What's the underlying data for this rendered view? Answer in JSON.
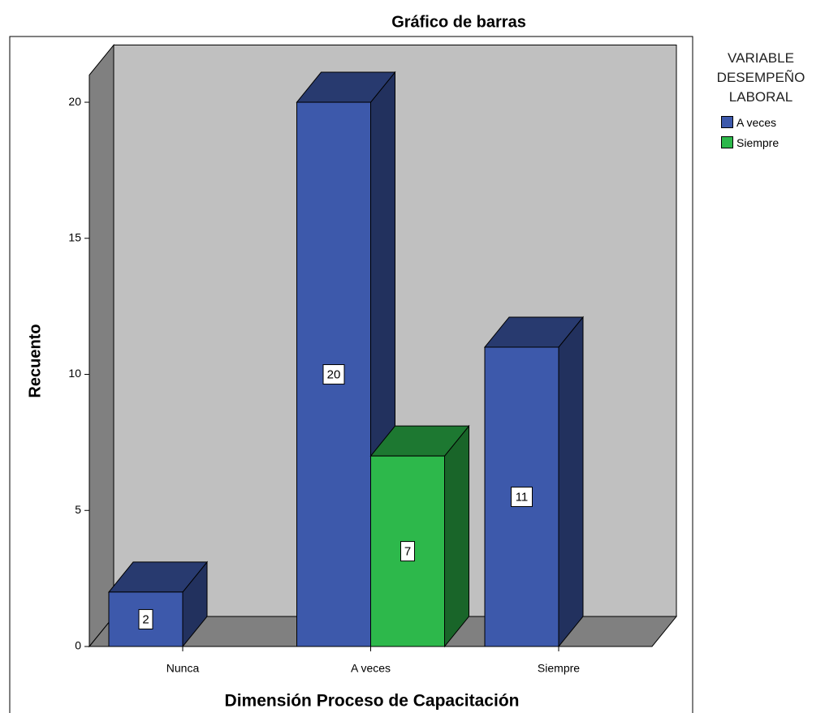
{
  "chart_data": {
    "type": "bar3d",
    "title": "Gráfico de barras",
    "x_label": "Dimensión Proceso de Capacitación",
    "y_label": "Recuento",
    "legend_title": "VARIABLE DESEMPEÑO LABORAL",
    "categories": [
      "Nunca",
      "A veces",
      "Siempre"
    ],
    "series": [
      {
        "name": "A veces",
        "color": "#3d59ab",
        "values": [
          2,
          20,
          11
        ]
      },
      {
        "name": "Siempre",
        "color": "#2db84b",
        "values": [
          null,
          7,
          null
        ]
      }
    ],
    "ylim": [
      0,
      21
    ],
    "yticks": [
      0,
      5,
      10,
      15,
      20
    ],
    "legend": "right"
  }
}
